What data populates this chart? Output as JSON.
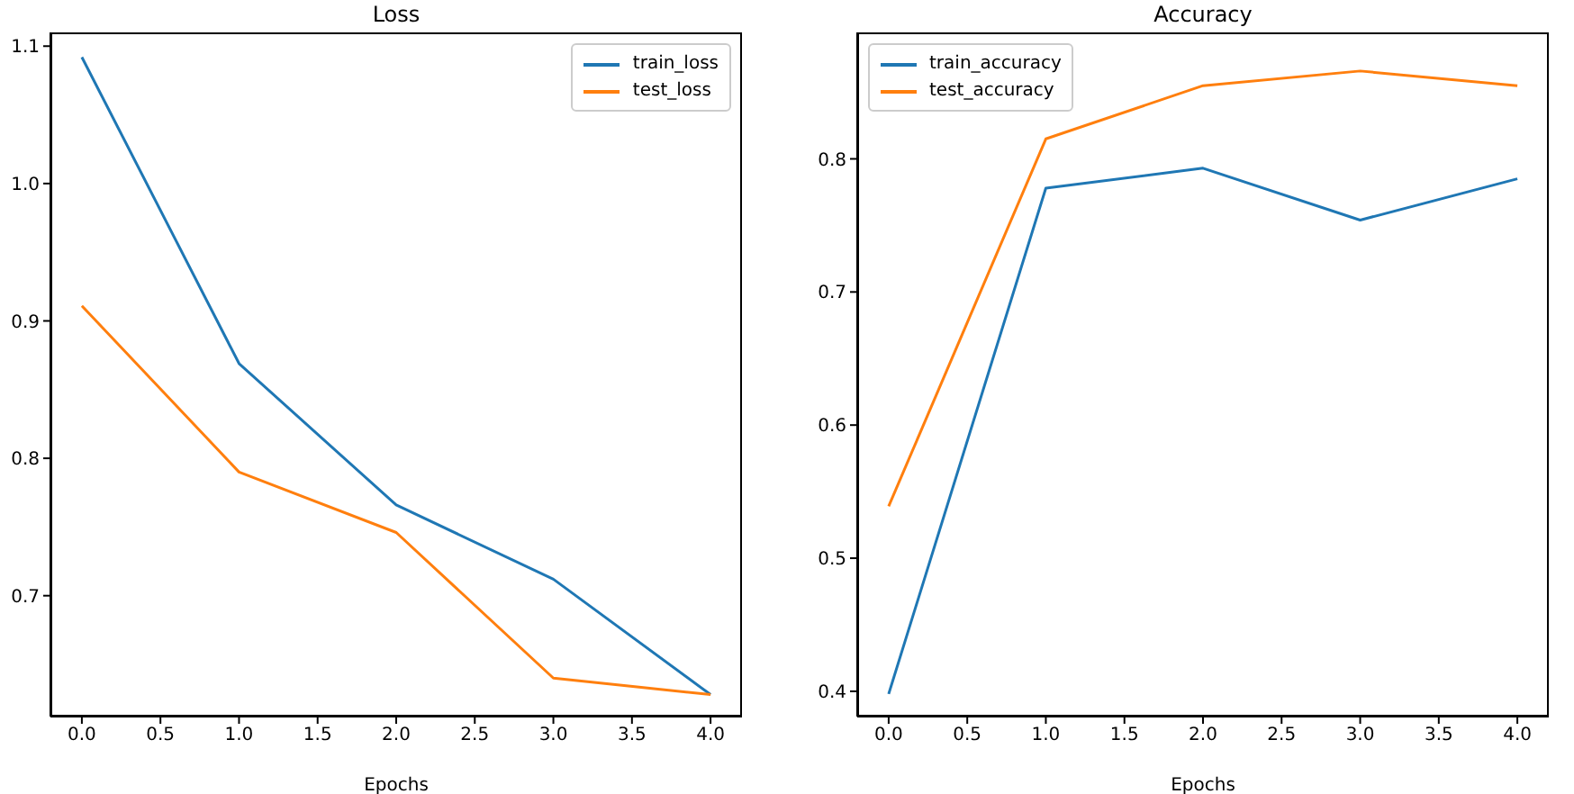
{
  "chart_data": [
    {
      "type": "line",
      "title": "Loss",
      "xlabel": "Epochs",
      "x": [
        0,
        1,
        2,
        3,
        4
      ],
      "xlim": [
        -0.2,
        4.2
      ],
      "xticks": [
        {
          "value": 0,
          "label": "0.0"
        },
        0.5,
        {
          "value": 1,
          "label": "1.0"
        },
        1.5,
        {
          "value": 2,
          "label": "2.0"
        },
        2.5,
        {
          "value": 3,
          "label": "3.0"
        },
        3.5,
        {
          "value": 4,
          "label": "4.0"
        }
      ],
      "ylim": [
        0.612,
        1.11
      ],
      "yticks": [
        0.7,
        0.8,
        0.9,
        {
          "value": 1,
          "label": "1.0"
        },
        1.1
      ],
      "series": [
        {
          "name": "train_loss",
          "color": "#1f77b4",
          "values": [
            1.092,
            0.869,
            0.766,
            0.712,
            0.628
          ]
        },
        {
          "name": "test_loss",
          "color": "#ff7f0e",
          "values": [
            0.911,
            0.79,
            0.746,
            0.64,
            0.628
          ]
        }
      ],
      "legend": "top right",
      "grid": false,
      "marker": "none",
      "line_style": "solid"
    },
    {
      "type": "line",
      "title": "Accuracy",
      "xlabel": "Epochs",
      "x": [
        0,
        1,
        2,
        3,
        4
      ],
      "xlim": [
        -0.2,
        4.2
      ],
      "xticks": [
        {
          "value": 0,
          "label": "0.0"
        },
        0.5,
        {
          "value": 1,
          "label": "1.0"
        },
        1.5,
        {
          "value": 2,
          "label": "2.0"
        },
        2.5,
        {
          "value": 3,
          "label": "3.0"
        },
        3.5,
        {
          "value": 4,
          "label": "4.0"
        }
      ],
      "ylim": [
        0.381,
        0.895
      ],
      "yticks": [
        0.4,
        0.5,
        0.6,
        0.7,
        0.8
      ],
      "series": [
        {
          "name": "train_accuracy",
          "color": "#1f77b4",
          "values": [
            0.398,
            0.778,
            0.793,
            0.754,
            0.785
          ]
        },
        {
          "name": "test_accuracy",
          "color": "#ff7f0e",
          "values": [
            0.539,
            0.815,
            0.855,
            0.866,
            0.855
          ]
        }
      ],
      "legend": "top left",
      "grid": false,
      "marker": "none",
      "line_style": "solid"
    }
  ]
}
